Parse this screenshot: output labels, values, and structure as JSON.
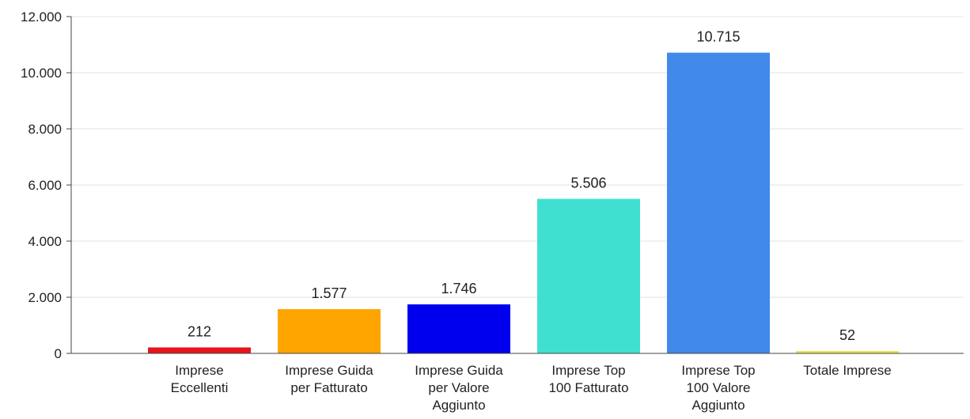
{
  "chart_data": {
    "type": "bar",
    "title": "",
    "xlabel": "",
    "ylabel": "",
    "ylim": [
      0,
      12000
    ],
    "yticks": [
      0,
      2000,
      4000,
      6000,
      8000,
      10000,
      12000
    ],
    "ytick_labels": [
      "0",
      "2.000",
      "4.000",
      "6.000",
      "8.000",
      "10.000",
      "12.000"
    ],
    "grid": true,
    "legend": "none",
    "categories": [
      [
        "Imprese",
        "Eccellenti"
      ],
      [
        "Imprese Guida",
        "per Fatturato"
      ],
      [
        "Imprese Guida",
        "per Valore",
        "Aggiunto"
      ],
      [
        "Imprese Top",
        "100 Fatturato"
      ],
      [
        "Imprese Top",
        "100 Valore",
        "Aggiunto"
      ],
      [
        "Totale Imprese"
      ]
    ],
    "values": [
      212,
      1577,
      1746,
      5506,
      10715,
      52
    ],
    "value_labels": [
      "212",
      "1.577",
      "1.746",
      "5.506",
      "10.715",
      "52"
    ],
    "colors": [
      "#e8141c",
      "#ffa500",
      "#0000ee",
      "#40e0d0",
      "#4189eb",
      "#e6e65a"
    ]
  }
}
